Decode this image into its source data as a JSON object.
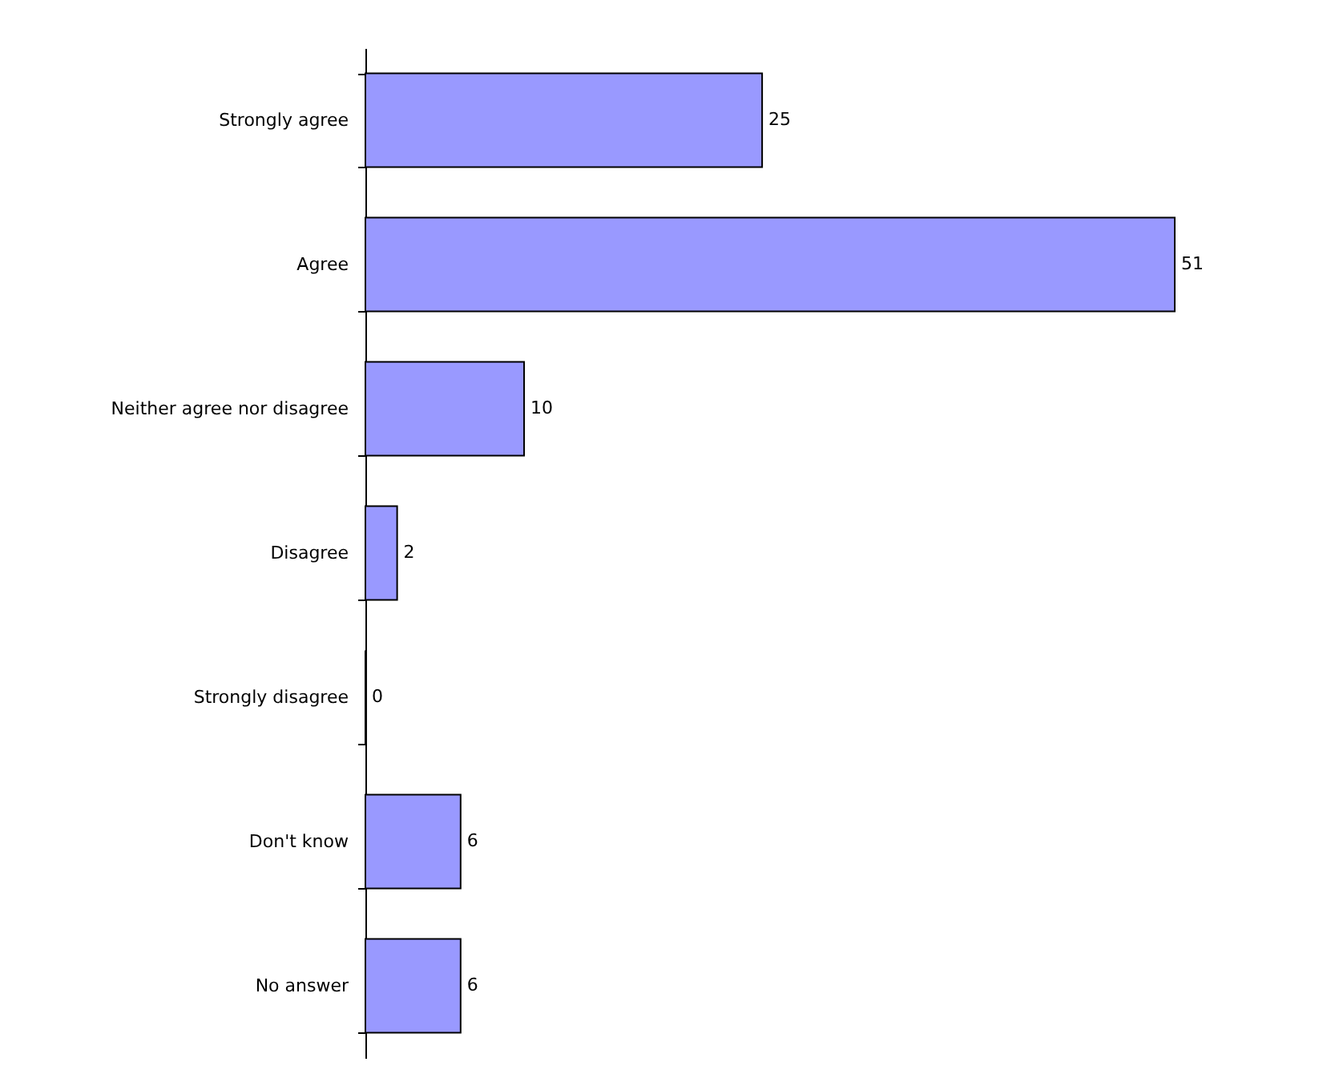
{
  "chart_data": {
    "type": "bar",
    "orientation": "horizontal",
    "categories": [
      "Strongly agree",
      "Agree",
      "Neither agree nor disagree",
      "Disagree",
      "Strongly disagree",
      "Don't know",
      "No answer"
    ],
    "values": [
      25,
      51,
      10,
      2,
      0,
      6,
      6
    ],
    "color": "#9999ff",
    "data_labels": true
  }
}
